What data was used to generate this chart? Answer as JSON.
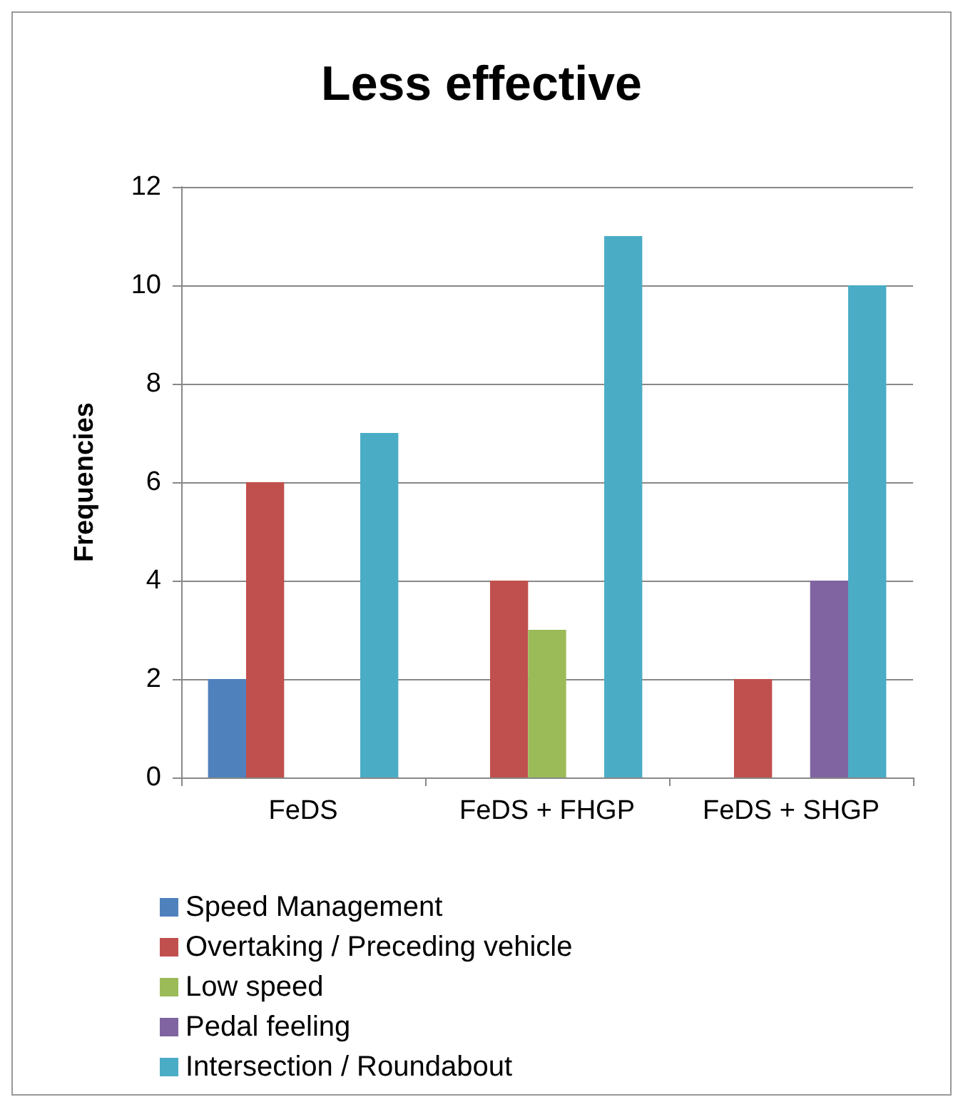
{
  "chart_data": {
    "type": "bar",
    "title": "Less effective",
    "ylabel": "Frequencies",
    "categories": [
      "FeDS",
      "FeDS + FHGP",
      "FeDS + SHGP"
    ],
    "series": [
      {
        "name": "Speed Management",
        "color": "#4f81bd",
        "values": [
          2,
          null,
          null
        ]
      },
      {
        "name": "Overtaking / Preceding vehicle",
        "color": "#c0504d",
        "values": [
          6,
          4,
          2
        ]
      },
      {
        "name": "Low speed",
        "color": "#9bbb59",
        "values": [
          null,
          3,
          null
        ]
      },
      {
        "name": "Pedal feeling",
        "color": "#8064a2",
        "values": [
          null,
          null,
          4
        ]
      },
      {
        "name": "Intersection / Roundabout",
        "color": "#4bacc6",
        "values": [
          7,
          11,
          10
        ]
      }
    ],
    "ylim": [
      0,
      12
    ],
    "yticks": [
      0,
      2,
      4,
      6,
      8,
      10,
      12
    ],
    "grid": "y",
    "legend": "bottom"
  }
}
